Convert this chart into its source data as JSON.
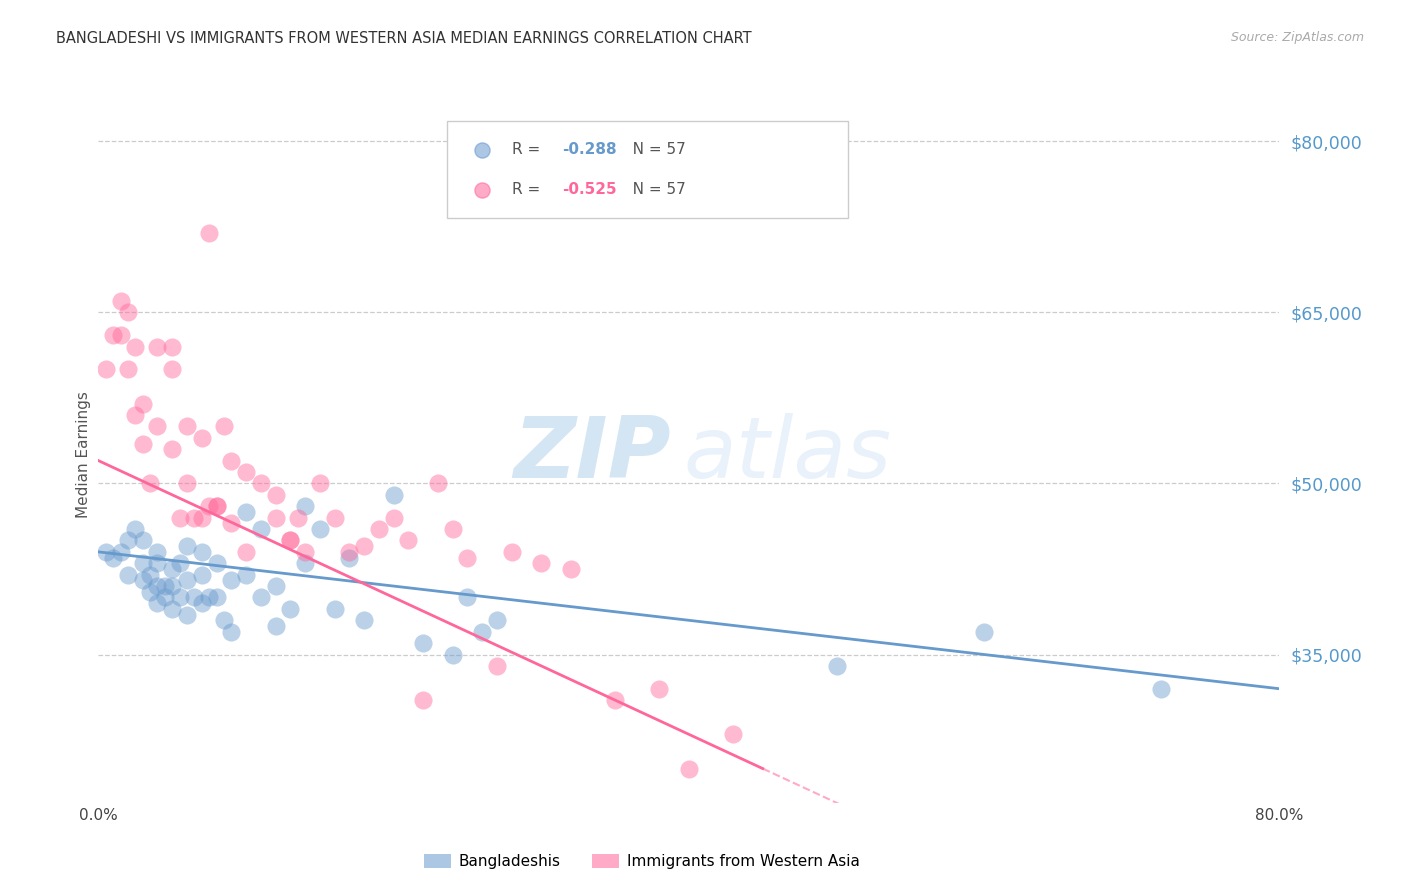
{
  "title": "BANGLADESHI VS IMMIGRANTS FROM WESTERN ASIA MEDIAN EARNINGS CORRELATION CHART",
  "source": "Source: ZipAtlas.com",
  "ylabel": "Median Earnings",
  "ytick_labels": [
    "$35,000",
    "$50,000",
    "$65,000",
    "$80,000"
  ],
  "ytick_values": [
    35000,
    50000,
    65000,
    80000
  ],
  "ymin": 22000,
  "ymax": 83000,
  "xmin": 0.0,
  "xmax": 0.8,
  "blue_R": "-0.288",
  "blue_N": "57",
  "pink_R": "-0.525",
  "pink_N": "57",
  "blue_color": "#6699CC",
  "pink_color": "#FF6699",
  "title_color": "#333333",
  "right_label_color": "#5599CC",
  "legend_label_blue": "Bangladeshis",
  "legend_label_pink": "Immigrants from Western Asia",
  "blue_scatter_x": [
    0.005,
    0.01,
    0.015,
    0.02,
    0.02,
    0.025,
    0.03,
    0.03,
    0.03,
    0.035,
    0.035,
    0.04,
    0.04,
    0.04,
    0.04,
    0.045,
    0.045,
    0.05,
    0.05,
    0.05,
    0.055,
    0.055,
    0.06,
    0.06,
    0.065,
    0.07,
    0.07,
    0.07,
    0.075,
    0.08,
    0.08,
    0.085,
    0.09,
    0.09,
    0.1,
    0.1,
    0.11,
    0.11,
    0.12,
    0.12,
    0.13,
    0.14,
    0.14,
    0.15,
    0.16,
    0.17,
    0.18,
    0.2,
    0.22,
    0.24,
    0.25,
    0.26,
    0.27,
    0.5,
    0.6,
    0.72,
    0.06
  ],
  "blue_scatter_y": [
    44000,
    43500,
    44000,
    45000,
    42000,
    46000,
    45000,
    43000,
    41500,
    42000,
    40500,
    44000,
    43000,
    41000,
    39500,
    41000,
    40000,
    42500,
    41000,
    39000,
    43000,
    40000,
    41500,
    38500,
    40000,
    44000,
    42000,
    39500,
    40000,
    43000,
    40000,
    38000,
    41500,
    37000,
    47500,
    42000,
    46000,
    40000,
    41000,
    37500,
    39000,
    48000,
    43000,
    46000,
    39000,
    43500,
    38000,
    49000,
    36000,
    35000,
    40000,
    37000,
    38000,
    34000,
    37000,
    32000,
    44500
  ],
  "pink_scatter_x": [
    0.005,
    0.01,
    0.015,
    0.015,
    0.02,
    0.02,
    0.025,
    0.025,
    0.03,
    0.03,
    0.035,
    0.04,
    0.04,
    0.05,
    0.05,
    0.055,
    0.06,
    0.06,
    0.065,
    0.07,
    0.075,
    0.075,
    0.08,
    0.085,
    0.09,
    0.09,
    0.1,
    0.11,
    0.12,
    0.12,
    0.13,
    0.135,
    0.14,
    0.15,
    0.16,
    0.17,
    0.18,
    0.19,
    0.2,
    0.21,
    0.22,
    0.23,
    0.24,
    0.25,
    0.27,
    0.28,
    0.3,
    0.32,
    0.35,
    0.38,
    0.4,
    0.43,
    0.1,
    0.07,
    0.05,
    0.08,
    0.13
  ],
  "pink_scatter_y": [
    60000,
    63000,
    66000,
    63000,
    65000,
    60000,
    62000,
    56000,
    57000,
    53500,
    50000,
    55000,
    62000,
    53000,
    60000,
    47000,
    55000,
    50000,
    47000,
    54000,
    48000,
    72000,
    48000,
    55000,
    46500,
    52000,
    51000,
    50000,
    47000,
    49000,
    45000,
    47000,
    44000,
    50000,
    47000,
    44000,
    44500,
    46000,
    47000,
    45000,
    31000,
    50000,
    46000,
    43500,
    34000,
    44000,
    43000,
    42500,
    31000,
    32000,
    25000,
    28000,
    44000,
    47000,
    62000,
    48000,
    45000
  ]
}
